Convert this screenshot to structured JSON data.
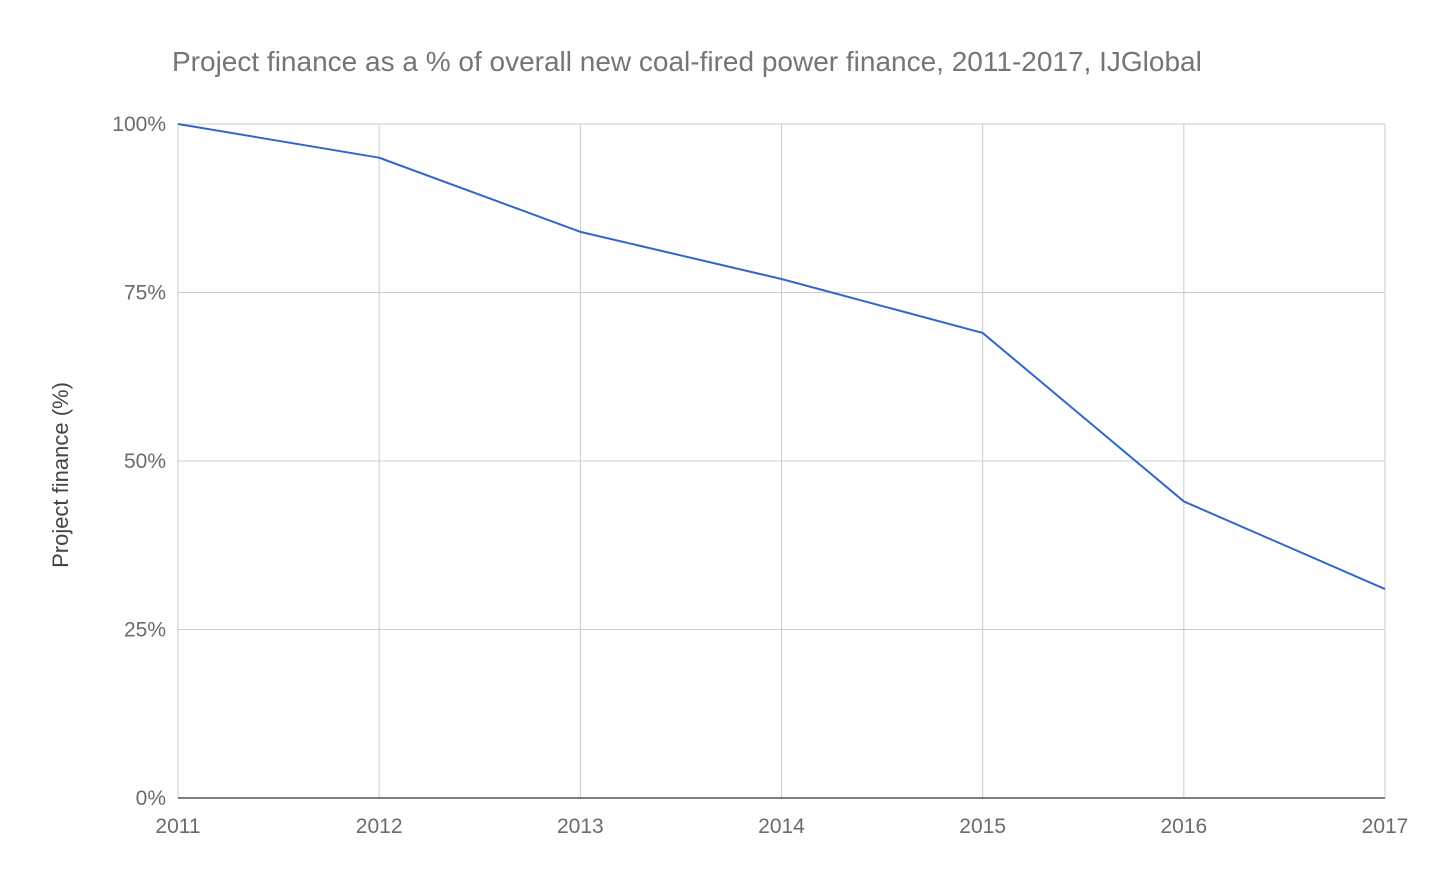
{
  "chart_data": {
    "type": "line",
    "title": "Project finance as a % of overall new coal-fired power finance, 2011-2017, IJGlobal",
    "xlabel": "",
    "ylabel": "Project finance (%)",
    "x": [
      "2011",
      "2012",
      "2013",
      "2014",
      "2015",
      "2016",
      "2017"
    ],
    "series": [
      {
        "values": [
          100,
          95,
          84,
          77,
          69,
          44,
          31
        ],
        "color": "#3366cc"
      }
    ],
    "ylim": [
      0,
      100
    ],
    "y_ticks": [
      0,
      25,
      50,
      75,
      100
    ],
    "y_tick_labels": [
      "0%",
      "25%",
      "50%",
      "75%",
      "100%"
    ],
    "grid": true,
    "legend": "none"
  }
}
